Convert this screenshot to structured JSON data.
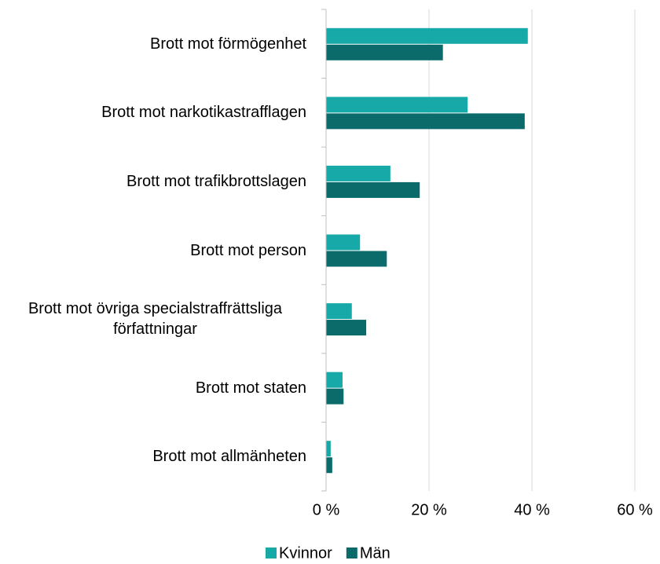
{
  "chart_data": {
    "type": "hbar",
    "categories": [
      "Brott mot förmögenhet",
      "Brott mot narkotikastrafflagen",
      "Brott mot trafikbrottslagen",
      "Brott mot person",
      "Brott mot övriga specialstraffrättsliga författningar",
      "Brott mot staten",
      "Brott mot allmänheten"
    ],
    "series": [
      {
        "name": "Kvinnor",
        "color": "#17a9a8",
        "values": [
          39.2,
          27.5,
          12.5,
          6.6,
          5.0,
          3.2,
          0.9
        ]
      },
      {
        "name": "Män",
        "color": "#0b6b6b",
        "values": [
          22.7,
          38.6,
          18.2,
          11.8,
          7.8,
          3.4,
          1.2
        ]
      }
    ],
    "xlim": [
      0,
      60
    ],
    "xticks": [
      {
        "value": 0,
        "label": "0 %"
      },
      {
        "value": 20,
        "label": "20 %"
      },
      {
        "value": 40,
        "label": "40 %"
      },
      {
        "value": 60,
        "label": "60 %"
      }
    ],
    "grid": true,
    "legend": "bottom"
  }
}
